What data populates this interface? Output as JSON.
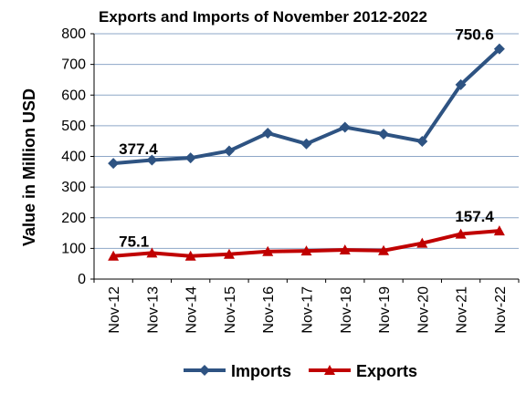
{
  "chart_data": {
    "type": "line",
    "title": "Exports and Imports of November 2012-2022",
    "ylabel": "Value in  Million  USD",
    "xlabel": "",
    "categories": [
      "Nov-12",
      "Nov-13",
      "Nov-14",
      "Nov-15",
      "Nov-16",
      "Nov-17",
      "Nov-18",
      "Nov-19",
      "Nov-20",
      "Nov-21",
      "Nov-22"
    ],
    "ylim": [
      0,
      800
    ],
    "yticks": [
      0,
      100,
      200,
      300,
      400,
      500,
      600,
      700,
      800
    ],
    "grid": true,
    "legend": "bottom",
    "series": [
      {
        "name": "Imports",
        "color": "#2E5382",
        "marker": "diamond",
        "values": [
          377.4,
          388,
          395,
          418,
          476,
          441,
          495,
          473,
          449,
          634,
          750.6
        ]
      },
      {
        "name": "Exports",
        "color": "#C00000",
        "marker": "triangle",
        "values": [
          75.1,
          85,
          75,
          81,
          90,
          92,
          95,
          93,
          117,
          147,
          157.4
        ]
      }
    ],
    "data_labels": [
      {
        "series": 0,
        "index": 0,
        "text": "377.4"
      },
      {
        "series": 0,
        "index": 10,
        "text": "750.6"
      },
      {
        "series": 1,
        "index": 0,
        "text": "75.1"
      },
      {
        "series": 1,
        "index": 10,
        "text": "157.4"
      }
    ]
  }
}
